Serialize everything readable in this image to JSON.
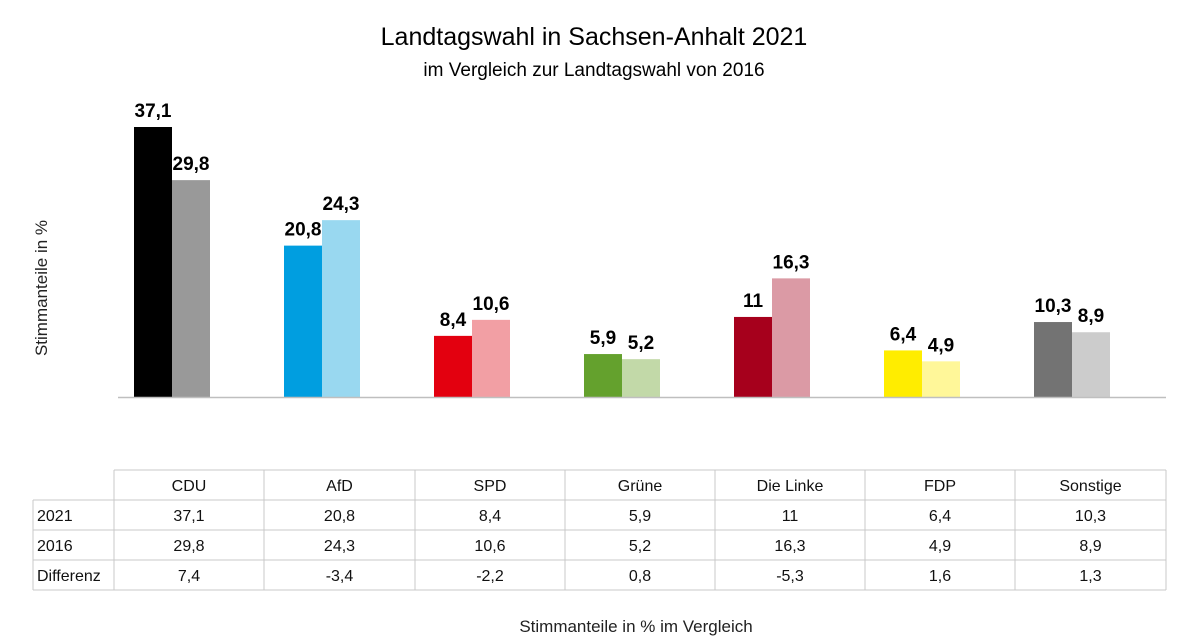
{
  "chart_data": {
    "type": "bar",
    "title": "Landtagswahl in Sachsen-Anhalt 2021",
    "subtitle": "im Vergleich zur Landtagswahl von 2016",
    "ylabel": "Stimmanteile in %",
    "xlabel": "Stimmanteile in % im Vergleich",
    "ylim": [
      0,
      37.1
    ],
    "categories": [
      "CDU",
      "AfD",
      "SPD",
      "Grüne",
      "Die Linke",
      "FDP",
      "Sonstige"
    ],
    "series": [
      {
        "name": "2021",
        "values": [
          37.1,
          20.8,
          8.4,
          5.9,
          11,
          6.4,
          10.3
        ],
        "labels": [
          "37,1",
          "20,8",
          "8,4",
          "5,9",
          "11",
          "6,4",
          "10,3"
        ],
        "colors": [
          "#000000",
          "#009ee0",
          "#e3000f",
          "#64a12d",
          "#a6001c",
          "#ffed00",
          "#737373"
        ]
      },
      {
        "name": "2016",
        "values": [
          29.8,
          24.3,
          10.6,
          5.2,
          16.3,
          4.9,
          8.9
        ],
        "labels": [
          "29,8",
          "24,3",
          "10,6",
          "5,2",
          "16,3",
          "4,9",
          "8,9"
        ],
        "colors": [
          "#999999",
          "#99d8f0",
          "#f29fa4",
          "#c2d9a8",
          "#db9aa5",
          "#fff799",
          "#cccccc"
        ]
      }
    ],
    "table": {
      "row_headers": [
        "2021",
        "2016",
        "Differenz"
      ],
      "rows": [
        [
          "37,1",
          "20,8",
          "8,4",
          "5,9",
          "11",
          "6,4",
          "10,3"
        ],
        [
          "29,8",
          "24,3",
          "10,6",
          "5,2",
          "16,3",
          "4,9",
          "8,9"
        ],
        [
          "7,4",
          "-3,4",
          "-2,2",
          "0,8",
          "-5,3",
          "1,6",
          "1,3"
        ]
      ]
    }
  }
}
